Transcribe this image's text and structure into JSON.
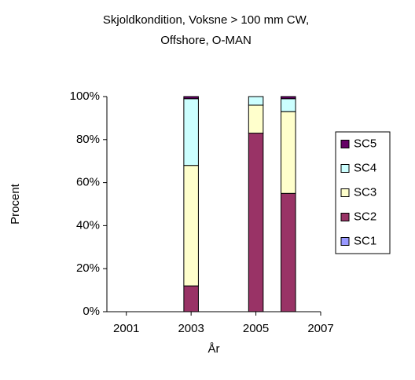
{
  "chart_data": {
    "type": "stacked_bar",
    "title": [
      "Skjoldkondition, Voksne > 100 mm CW,",
      "Offshore, O-MAN"
    ],
    "x_label": "År",
    "y_label": "Procent",
    "x": [
      2003,
      2005,
      2006
    ],
    "series": [
      {
        "name": "SC1",
        "color": "#9999ff",
        "values": [
          0,
          0,
          0
        ]
      },
      {
        "name": "SC2",
        "color": "#993366",
        "values": [
          12,
          83,
          55
        ]
      },
      {
        "name": "SC3",
        "color": "#ffffcc",
        "values": [
          56,
          13,
          38
        ]
      },
      {
        "name": "SC4",
        "color": "#ccffff",
        "values": [
          31,
          4,
          6
        ]
      },
      {
        "name": "SC5",
        "color": "#660066",
        "values": [
          1,
          0,
          1
        ]
      }
    ],
    "xlim": [
      2000.4,
      2007
    ],
    "xticks": [
      2001,
      2003,
      2005,
      2007
    ],
    "ylim": [
      0,
      100
    ],
    "yticks": [
      {
        "value": 0,
        "label": "0%"
      },
      {
        "value": 20,
        "label": "20%"
      },
      {
        "value": 40,
        "label": "40%"
      },
      {
        "value": 60,
        "label": "60%"
      },
      {
        "value": 80,
        "label": "80%"
      },
      {
        "value": 100,
        "label": "100%"
      }
    ],
    "legend": "right"
  }
}
